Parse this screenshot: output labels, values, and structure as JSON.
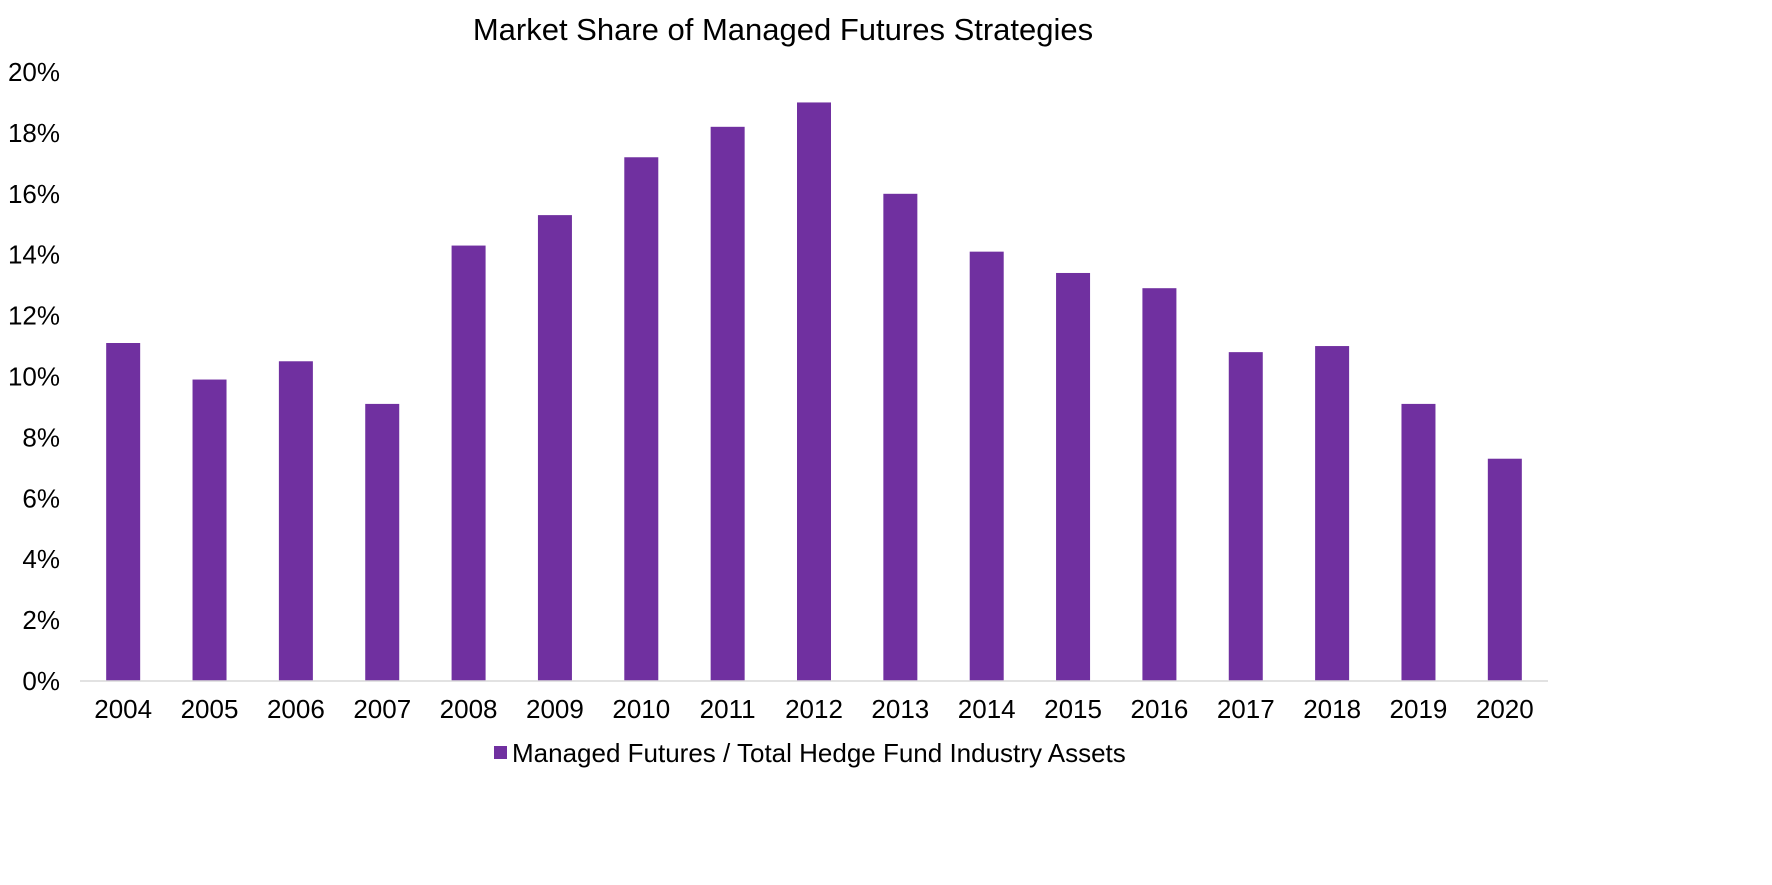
{
  "chart_data": {
    "type": "bar",
    "title": "Market Share of Managed Futures Strategies",
    "xlabel": "",
    "ylabel": "",
    "categories": [
      "2004",
      "2005",
      "2006",
      "2007",
      "2008",
      "2009",
      "2010",
      "2011",
      "2012",
      "2013",
      "2014",
      "2015",
      "2016",
      "2017",
      "2018",
      "2019",
      "2020"
    ],
    "series": [
      {
        "name": "Managed Futures / Total Hedge Fund Industry Assets",
        "color": "#7030A0",
        "values": [
          11.1,
          9.9,
          10.5,
          9.1,
          14.3,
          15.3,
          17.2,
          18.2,
          19.0,
          16.0,
          14.1,
          13.4,
          12.9,
          10.8,
          11.0,
          9.1,
          7.3
        ]
      }
    ],
    "ylim": [
      0,
      20
    ],
    "yticks": [
      0,
      2,
      4,
      6,
      8,
      10,
      12,
      14,
      16,
      18,
      20
    ],
    "ytick_labels": [
      "0%",
      "2%",
      "4%",
      "6%",
      "8%",
      "10%",
      "12%",
      "14%",
      "16%",
      "18%",
      "20%"
    ],
    "grid": false,
    "legend_position": "bottom"
  }
}
